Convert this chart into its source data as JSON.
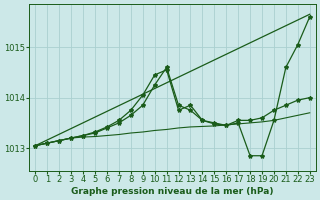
{
  "title": "Graphe pression niveau de la mer (hPa)",
  "bg_color": "#cce8e8",
  "grid_color": "#aad0d0",
  "line_color": "#1a5c1a",
  "title_fontsize": 6.5,
  "xlim": [
    -0.5,
    23.5
  ],
  "ylim": [
    1012.55,
    1015.85
  ],
  "yticks": [
    1013,
    1014,
    1015
  ],
  "xticks": [
    0,
    1,
    2,
    3,
    4,
    5,
    6,
    7,
    8,
    9,
    10,
    11,
    12,
    13,
    14,
    15,
    16,
    17,
    18,
    19,
    20,
    21,
    22,
    23
  ],
  "tick_fontsize": 6,
  "lines": [
    {
      "x": [
        0,
        1,
        2,
        3,
        4,
        5,
        6,
        7,
        8,
        9,
        10,
        11,
        12,
        13,
        14,
        15,
        16,
        17,
        18,
        19,
        20,
        21,
        22,
        23
      ],
      "y": [
        1013.05,
        1013.1,
        1013.15,
        1013.2,
        1013.22,
        1013.23,
        1013.25,
        1013.27,
        1013.3,
        1013.32,
        1013.35,
        1013.37,
        1013.4,
        1013.42,
        1013.43,
        1013.44,
        1013.46,
        1013.48,
        1013.5,
        1013.52,
        1013.55,
        1013.6,
        1013.65,
        1013.7
      ],
      "marker": null,
      "lw": 0.8
    },
    {
      "x": [
        0,
        23
      ],
      "y": [
        1013.05,
        1015.65
      ],
      "marker": null,
      "lw": 0.9
    },
    {
      "x": [
        0,
        1,
        2,
        3,
        4,
        5,
        6,
        7,
        8,
        9,
        10,
        11,
        12,
        13,
        14,
        15,
        16,
        17,
        18,
        19,
        20,
        21,
        22,
        23
      ],
      "y": [
        1013.05,
        1013.1,
        1013.15,
        1013.2,
        1013.25,
        1013.3,
        1013.4,
        1013.5,
        1013.65,
        1013.85,
        1014.25,
        1014.6,
        1013.85,
        1013.75,
        1013.55,
        1013.5,
        1013.45,
        1013.5,
        1012.85,
        1012.85,
        1013.55,
        1014.6,
        1015.05,
        1015.6
      ],
      "marker": "*",
      "ms": 3.0,
      "lw": 0.9
    },
    {
      "x": [
        0,
        1,
        2,
        3,
        4,
        5,
        6,
        7,
        8,
        9,
        10,
        11,
        12,
        13,
        14,
        15,
        16,
        17,
        18,
        19,
        20,
        21,
        22,
        23
      ],
      "y": [
        1013.05,
        1013.1,
        1013.15,
        1013.2,
        1013.25,
        1013.32,
        1013.42,
        1013.55,
        1013.75,
        1014.05,
        1014.45,
        1014.55,
        1013.75,
        1013.85,
        1013.55,
        1013.48,
        1013.45,
        1013.55,
        1013.55,
        1013.6,
        1013.75,
        1013.85,
        1013.95,
        1014.0
      ],
      "marker": "*",
      "ms": 3.0,
      "lw": 0.9
    }
  ]
}
